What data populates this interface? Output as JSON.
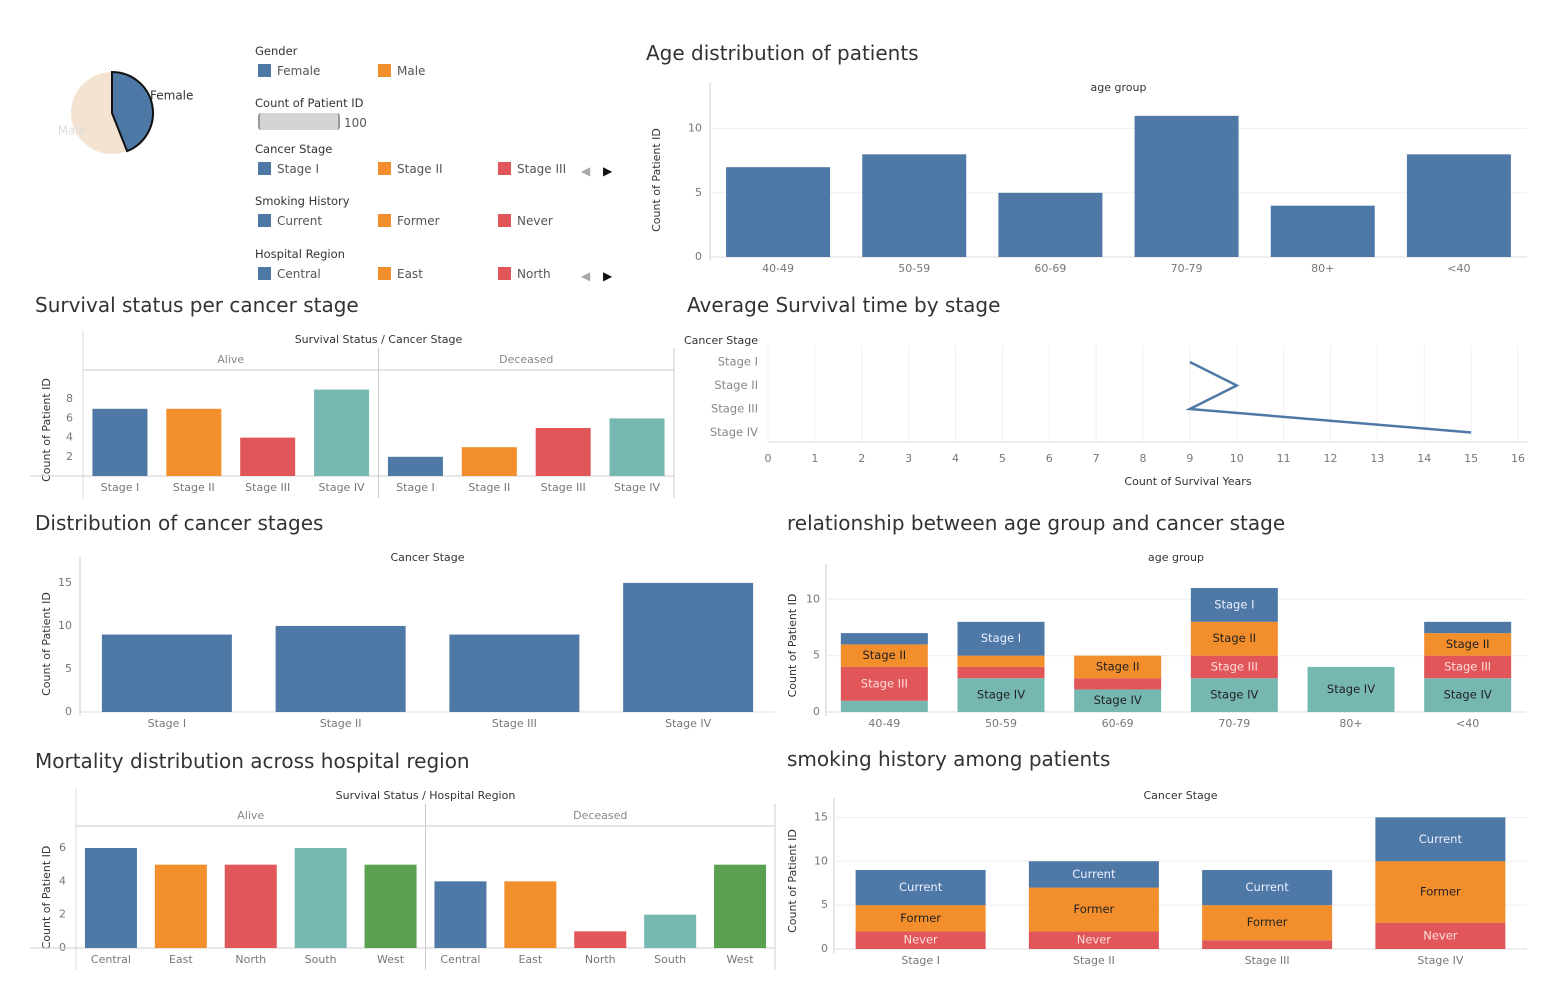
{
  "colors": {
    "blue": "#4e79a7",
    "orange": "#f28e2b",
    "red": "#e15759",
    "teal": "#76b7b2",
    "green": "#59a14f",
    "pie_male": "#f4e3d1"
  },
  "legends": {
    "gender": {
      "title": "Gender",
      "items": [
        "Female",
        "Male"
      ]
    },
    "count": {
      "title": "Count of Patient ID",
      "value": "100"
    },
    "cancer_stage": {
      "title": "Cancer Stage",
      "items": [
        "Stage I",
        "Stage II",
        "Stage III"
      ]
    },
    "smoking": {
      "title": "Smoking History",
      "items": [
        "Current",
        "Former",
        "Never"
      ]
    },
    "region": {
      "title": "Hospital Region",
      "items": [
        "Central",
        "East",
        "North"
      ]
    },
    "icons": {
      "prev": "caret-left-icon",
      "next": "caret-right-icon"
    }
  },
  "titles": {
    "age": "Age distribution of patients",
    "survival": "Survival status per cancer stage",
    "avg": "Average Survival time by stage",
    "dist": "Distribution of cancer stages",
    "rel": "relationship between age group and cancer stage",
    "mort": "Mortality distribution across hospital region",
    "smoke": "smoking history among patients"
  },
  "chart_data": [
    {
      "id": "gender_pie",
      "type": "pie",
      "slices": [
        {
          "label": "Female",
          "value": 44
        },
        {
          "label": "Male",
          "value": 56
        }
      ]
    },
    {
      "id": "age_distribution",
      "type": "bar",
      "header": "age group",
      "ylabel": "Count of Patient ID",
      "categories": [
        "40-49",
        "50-59",
        "60-69",
        "70-79",
        "80+",
        "<40"
      ],
      "values": [
        7,
        8,
        5,
        11,
        4,
        8
      ],
      "ylim": [
        0,
        12
      ],
      "yticks": [
        0,
        5,
        10
      ]
    },
    {
      "id": "survival_by_stage",
      "type": "bar",
      "header": "Survival Status / Cancer Stage",
      "ylabel": "Count of Patient ID",
      "panels": [
        {
          "label": "Alive",
          "categories": [
            "Stage I",
            "Stage II",
            "Stage III",
            "Stage IV"
          ],
          "values": [
            7,
            7,
            4,
            9
          ]
        },
        {
          "label": "Deceased",
          "categories": [
            "Stage I",
            "Stage II",
            "Stage III",
            "Stage IV"
          ],
          "values": [
            2,
            3,
            5,
            6
          ]
        }
      ],
      "ylim": [
        0,
        10
      ],
      "yticks": [
        2,
        4,
        6,
        8
      ]
    },
    {
      "id": "avg_survival_by_stage",
      "type": "line",
      "header": "Cancer Stage",
      "xlabel": "Count of Survival Years",
      "categories": [
        "Stage I",
        "Stage II",
        "Stage III",
        "Stage IV"
      ],
      "values": [
        9,
        10,
        9,
        15
      ],
      "xlim": [
        0,
        16
      ],
      "xticks": [
        0,
        1,
        2,
        3,
        4,
        5,
        6,
        7,
        8,
        9,
        10,
        11,
        12,
        13,
        14,
        15,
        16
      ]
    },
    {
      "id": "stage_distribution",
      "type": "bar",
      "header": "Cancer Stage",
      "ylabel": "Count of Patient ID",
      "categories": [
        "Stage I",
        "Stage II",
        "Stage III",
        "Stage IV"
      ],
      "values": [
        9,
        10,
        9,
        15
      ],
      "ylim": [
        0,
        15.8
      ],
      "yticks": [
        0,
        5,
        10,
        15
      ]
    },
    {
      "id": "age_vs_stage",
      "type": "bar",
      "stacked": true,
      "header": "age group",
      "ylabel": "Count of Patient ID",
      "categories": [
        "40-49",
        "50-59",
        "60-69",
        "70-79",
        "80+",
        "<40"
      ],
      "series": [
        {
          "name": "Stage IV",
          "values": [
            1,
            3,
            2,
            3,
            4,
            3
          ]
        },
        {
          "name": "Stage III",
          "values": [
            3,
            1,
            1,
            2,
            0,
            2
          ]
        },
        {
          "name": "Stage II",
          "values": [
            2,
            1,
            2,
            3,
            0,
            2
          ]
        },
        {
          "name": "Stage I",
          "values": [
            1,
            3,
            0,
            3,
            0,
            1
          ]
        }
      ],
      "ylim": [
        0,
        11.8
      ],
      "yticks": [
        0,
        5,
        10
      ]
    },
    {
      "id": "mortality_by_region",
      "type": "bar",
      "header": "Survival Status / Hospital Region",
      "ylabel": "Count of Patient ID",
      "panels": [
        {
          "label": "Alive",
          "categories": [
            "Central",
            "East",
            "North",
            "South",
            "West"
          ],
          "values": [
            6,
            5,
            5,
            6,
            5
          ]
        },
        {
          "label": "Deceased",
          "categories": [
            "Central",
            "East",
            "North",
            "South",
            "West"
          ],
          "values": [
            4,
            4,
            1,
            2,
            5
          ]
        }
      ],
      "ylim": [
        0,
        6.3
      ],
      "yticks": [
        0,
        2,
        4,
        6
      ]
    },
    {
      "id": "smoking_by_stage",
      "type": "bar",
      "stacked": true,
      "header": "Cancer Stage",
      "ylabel": "Count of Patient ID",
      "categories": [
        "Stage I",
        "Stage II",
        "Stage III",
        "Stage IV"
      ],
      "series": [
        {
          "name": "Never",
          "values": [
            2,
            2,
            1,
            3
          ]
        },
        {
          "name": "Former",
          "values": [
            3,
            5,
            4,
            7
          ]
        },
        {
          "name": "Current",
          "values": [
            4,
            3,
            4,
            5
          ]
        }
      ],
      "ylim": [
        0,
        15.5
      ],
      "yticks": [
        0,
        5,
        10,
        15
      ]
    }
  ]
}
